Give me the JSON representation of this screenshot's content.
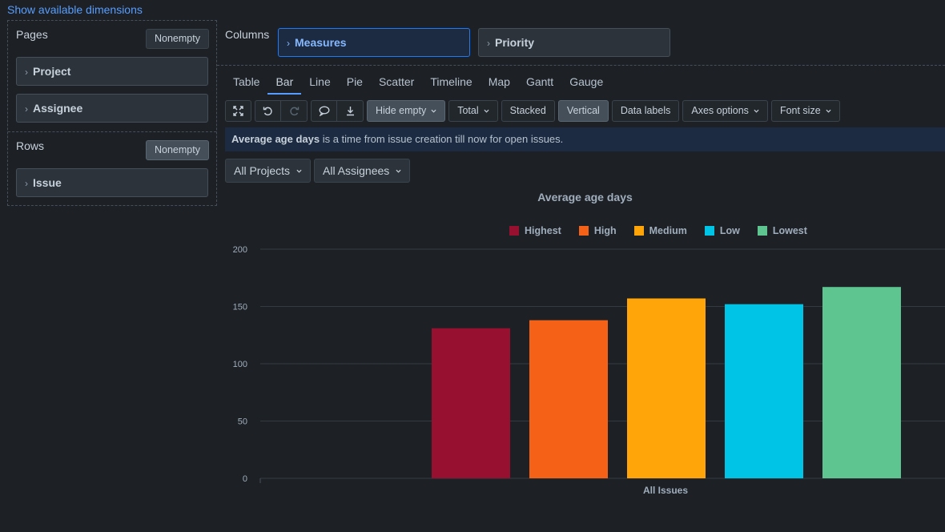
{
  "top_link": "Show available dimensions",
  "pages": {
    "label": "Pages",
    "nonempty_label": "Nonempty",
    "items": [
      "Project",
      "Assignee"
    ]
  },
  "rows": {
    "label": "Rows",
    "nonempty_label": "Nonempty",
    "items": [
      "Issue"
    ]
  },
  "columns": {
    "label": "Columns",
    "items": [
      "Measures",
      "Priority"
    ]
  },
  "tabs": [
    "Table",
    "Bar",
    "Line",
    "Pie",
    "Scatter",
    "Timeline",
    "Map",
    "Gantt",
    "Gauge"
  ],
  "active_tab": "Bar",
  "toolbar": {
    "hide_empty": "Hide empty",
    "total": "Total",
    "stacked": "Stacked",
    "vertical": "Vertical",
    "data_labels": "Data labels",
    "axes_options": "Axes options",
    "font_size": "Font size"
  },
  "info": {
    "bold": "Average age days",
    "rest": " is a time from issue creation till now for open issues."
  },
  "filters": {
    "projects": "All Projects",
    "assignees": "All Assignees"
  },
  "colors": {
    "accent": "#579dff",
    "Highest": "#97102f",
    "High": "#f46117",
    "Medium": "#ffa50a",
    "Low": "#00c4e6",
    "Lowest": "#5ec490"
  },
  "chart_data": {
    "type": "bar",
    "title": "Average age days",
    "categories": [
      "All Issues"
    ],
    "series": [
      {
        "name": "Highest",
        "values": [
          131
        ]
      },
      {
        "name": "High",
        "values": [
          138
        ]
      },
      {
        "name": "Medium",
        "values": [
          157
        ]
      },
      {
        "name": "Low",
        "values": [
          152
        ]
      },
      {
        "name": "Lowest",
        "values": [
          167
        ]
      }
    ],
    "ylim": [
      0,
      200
    ],
    "yticks": [
      0,
      50,
      100,
      150,
      200
    ],
    "grid": true,
    "legend": "top"
  }
}
